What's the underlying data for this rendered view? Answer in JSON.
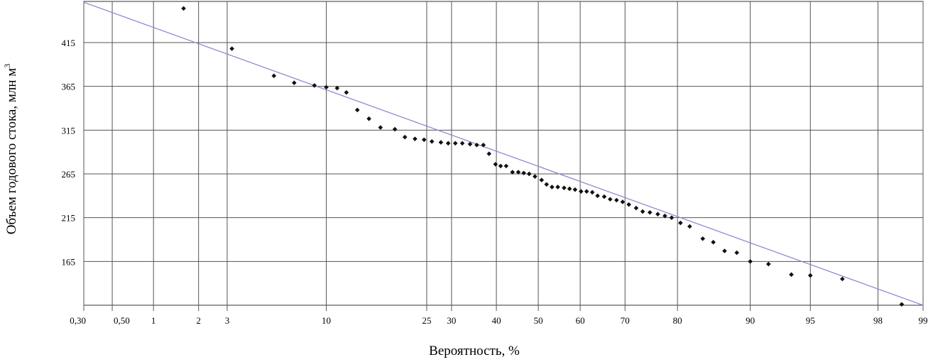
{
  "chart_data": {
    "type": "scatter",
    "title": "",
    "xlabel": "Вероятность, %",
    "ylabel_main": "Объем годового стока, млн м",
    "ylabel_sup": "3",
    "x_scale": "probability",
    "x_ticks": [
      0.3,
      0.5,
      1,
      2,
      3,
      10,
      25,
      30,
      40,
      50,
      60,
      70,
      80,
      90,
      95,
      98,
      99
    ],
    "x_tick_labels": [
      "0,30",
      "0,50",
      "1",
      "2",
      "3",
      "10",
      "25",
      "30",
      "40",
      "50",
      "60",
      "70",
      "80",
      "90",
      "95",
      "98",
      "99"
    ],
    "y_ticks": [
      165,
      215,
      265,
      315,
      365,
      415
    ],
    "ylim": [
      115,
      462
    ],
    "grid": true,
    "points": [
      {
        "x": 1.6,
        "y": 454
      },
      {
        "x": 3.2,
        "y": 408
      },
      {
        "x": 5.5,
        "y": 377
      },
      {
        "x": 7.0,
        "y": 369
      },
      {
        "x": 8.8,
        "y": 366
      },
      {
        "x": 10.0,
        "y": 364
      },
      {
        "x": 11.2,
        "y": 363
      },
      {
        "x": 12.3,
        "y": 358
      },
      {
        "x": 13.7,
        "y": 338
      },
      {
        "x": 15.3,
        "y": 328
      },
      {
        "x": 17.0,
        "y": 318
      },
      {
        "x": 19.3,
        "y": 316
      },
      {
        "x": 21.0,
        "y": 307
      },
      {
        "x": 22.8,
        "y": 305
      },
      {
        "x": 24.5,
        "y": 304
      },
      {
        "x": 26.0,
        "y": 302
      },
      {
        "x": 27.8,
        "y": 301
      },
      {
        "x": 29.3,
        "y": 300
      },
      {
        "x": 30.8,
        "y": 300
      },
      {
        "x": 32.3,
        "y": 300
      },
      {
        "x": 34.0,
        "y": 299
      },
      {
        "x": 35.5,
        "y": 298
      },
      {
        "x": 37.0,
        "y": 298
      },
      {
        "x": 38.3,
        "y": 288
      },
      {
        "x": 39.8,
        "y": 276
      },
      {
        "x": 41.0,
        "y": 274
      },
      {
        "x": 42.3,
        "y": 274
      },
      {
        "x": 43.8,
        "y": 267
      },
      {
        "x": 45.2,
        "y": 267
      },
      {
        "x": 46.5,
        "y": 266
      },
      {
        "x": 47.8,
        "y": 265
      },
      {
        "x": 49.2,
        "y": 262
      },
      {
        "x": 50.8,
        "y": 258
      },
      {
        "x": 52.0,
        "y": 253
      },
      {
        "x": 53.3,
        "y": 250
      },
      {
        "x": 54.7,
        "y": 250
      },
      {
        "x": 56.2,
        "y": 249
      },
      {
        "x": 57.5,
        "y": 248
      },
      {
        "x": 58.8,
        "y": 247
      },
      {
        "x": 60.2,
        "y": 245
      },
      {
        "x": 61.5,
        "y": 245
      },
      {
        "x": 62.8,
        "y": 244
      },
      {
        "x": 64.0,
        "y": 240
      },
      {
        "x": 65.5,
        "y": 239
      },
      {
        "x": 66.8,
        "y": 236
      },
      {
        "x": 68.2,
        "y": 235
      },
      {
        "x": 69.5,
        "y": 233
      },
      {
        "x": 70.8,
        "y": 230
      },
      {
        "x": 72.3,
        "y": 226
      },
      {
        "x": 73.6,
        "y": 222
      },
      {
        "x": 75.0,
        "y": 221
      },
      {
        "x": 76.5,
        "y": 219
      },
      {
        "x": 77.8,
        "y": 217
      },
      {
        "x": 79.0,
        "y": 215
      },
      {
        "x": 80.5,
        "y": 209
      },
      {
        "x": 82.0,
        "y": 205
      },
      {
        "x": 84.0,
        "y": 191
      },
      {
        "x": 85.5,
        "y": 187
      },
      {
        "x": 87.0,
        "y": 177
      },
      {
        "x": 88.5,
        "y": 175
      },
      {
        "x": 90.0,
        "y": 165
      },
      {
        "x": 91.8,
        "y": 162
      },
      {
        "x": 93.7,
        "y": 150
      },
      {
        "x": 95.0,
        "y": 149
      },
      {
        "x": 96.7,
        "y": 145
      },
      {
        "x": 98.6,
        "y": 116
      }
    ],
    "trend_line": {
      "x": [
        0.3,
        99
      ],
      "y": [
        461,
        115
      ]
    }
  }
}
